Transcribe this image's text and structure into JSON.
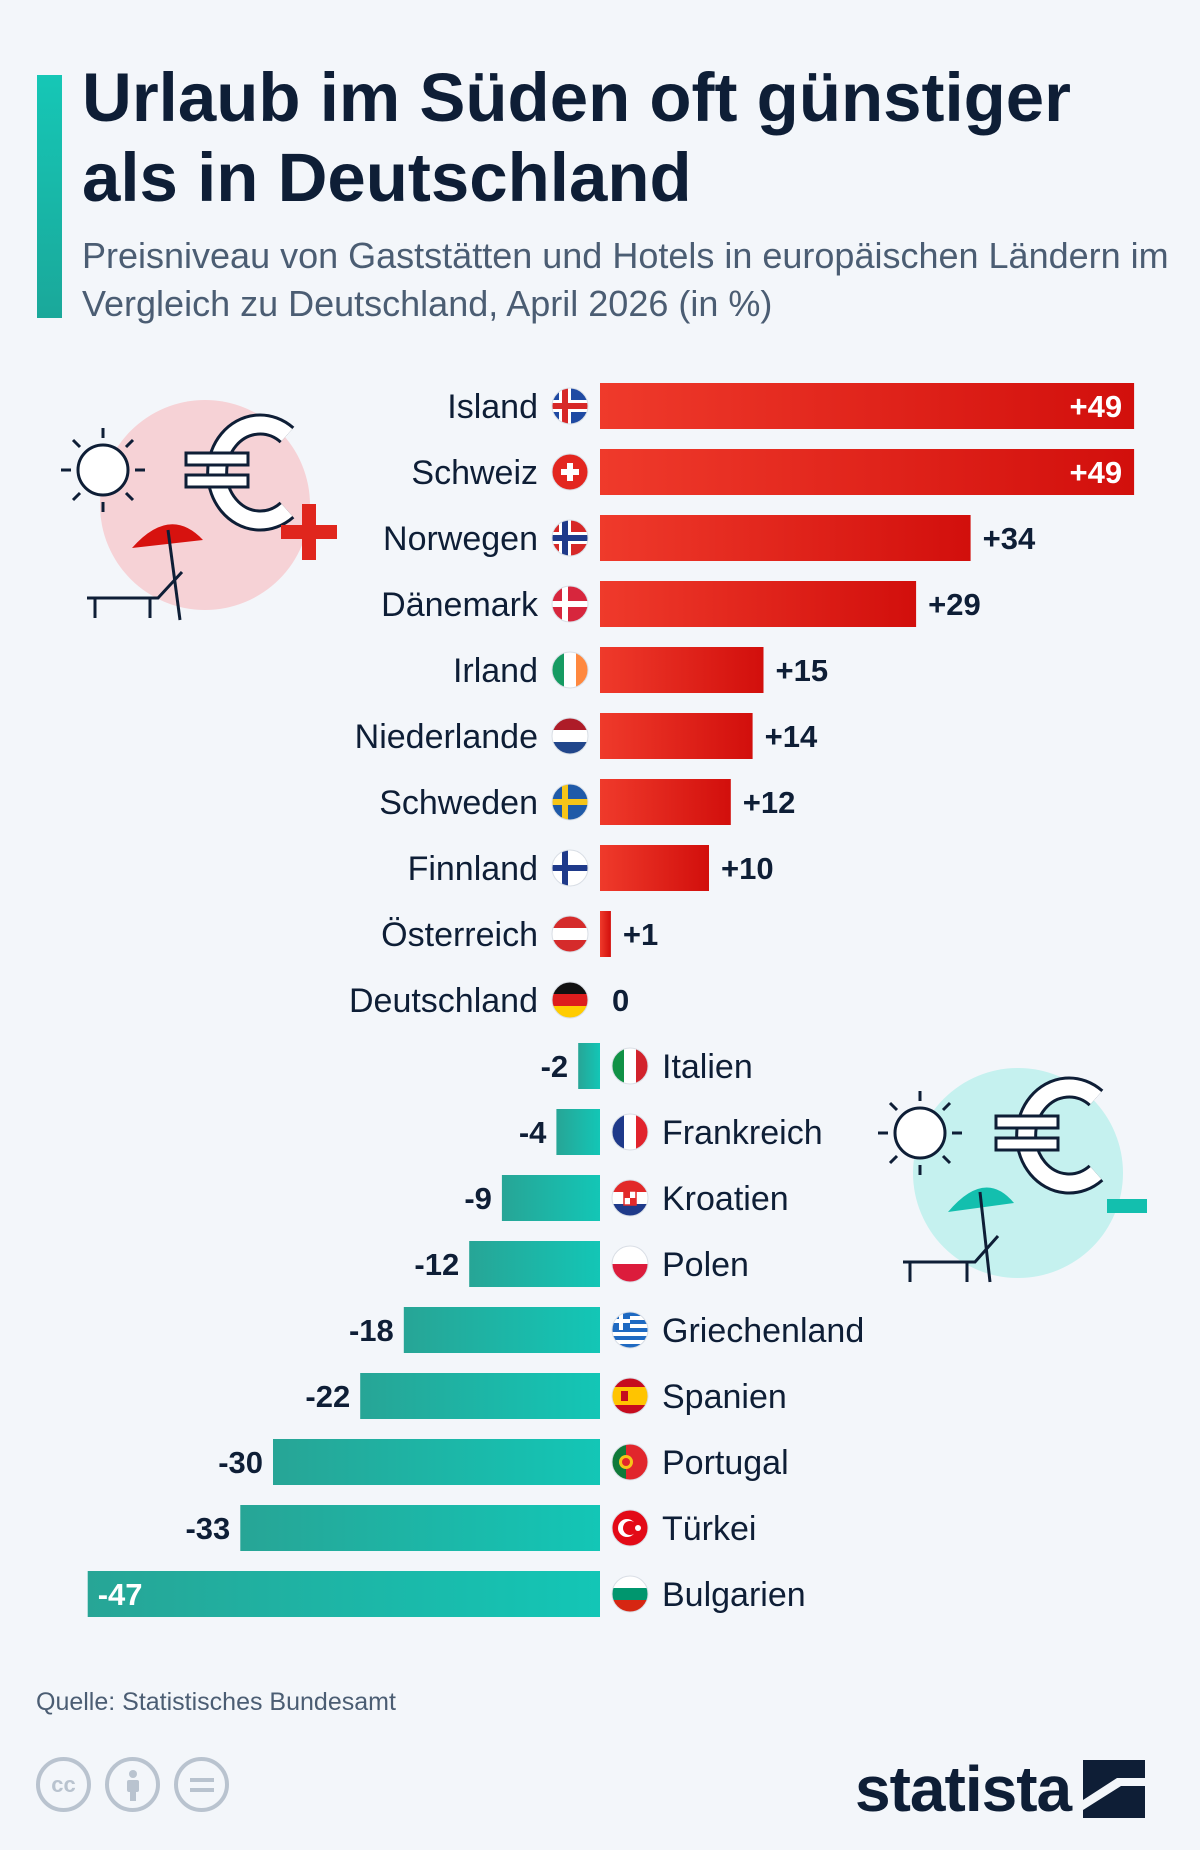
{
  "header": {
    "title": "Urlaub im Süden oft günstiger als in Deutschland",
    "subtitle": "Preisniveau von Gaststätten und Hotels in europäischen Ländern im Vergleich zu Deutschland, April 2026 (in %)"
  },
  "chart_data": {
    "type": "bar",
    "orientation": "horizontal",
    "categories": [
      "Island",
      "Schweiz",
      "Norwegen",
      "Dänemark",
      "Irland",
      "Niederlande",
      "Schweden",
      "Finnland",
      "Österreich",
      "Deutschland",
      "Italien",
      "Frankreich",
      "Kroatien",
      "Polen",
      "Griechenland",
      "Spanien",
      "Portugal",
      "Türkei",
      "Bulgarien"
    ],
    "values": [
      49,
      49,
      34,
      29,
      15,
      14,
      12,
      10,
      1,
      0,
      -2,
      -4,
      -9,
      -12,
      -18,
      -22,
      -30,
      -33,
      -47
    ],
    "labels": [
      "+49",
      "+49",
      "+34",
      "+29",
      "+15",
      "+14",
      "+12",
      "+10",
      "+1",
      "0",
      "-2",
      "-4",
      "-9",
      "-12",
      "-18",
      "-22",
      "-30",
      "-33",
      "-47"
    ],
    "colors": {
      "positive": "#d7120f",
      "positive_light": "#ef3a2b",
      "negative": "#1fb7a8",
      "negative_light": "#11c8b8"
    },
    "grid": false,
    "legend": "none"
  },
  "footer": {
    "source": "Quelle: Statistisches Bundesamt",
    "license_icons": [
      "cc-icon",
      "attribution-icon",
      "no-derivatives-icon"
    ],
    "cc_text": "cc",
    "logo_text": "statista"
  },
  "illustrations": [
    "sun-icon",
    "euro-icon",
    "plus-icon",
    "umbrella-icon",
    "lounger-icon",
    "minus-icon"
  ]
}
